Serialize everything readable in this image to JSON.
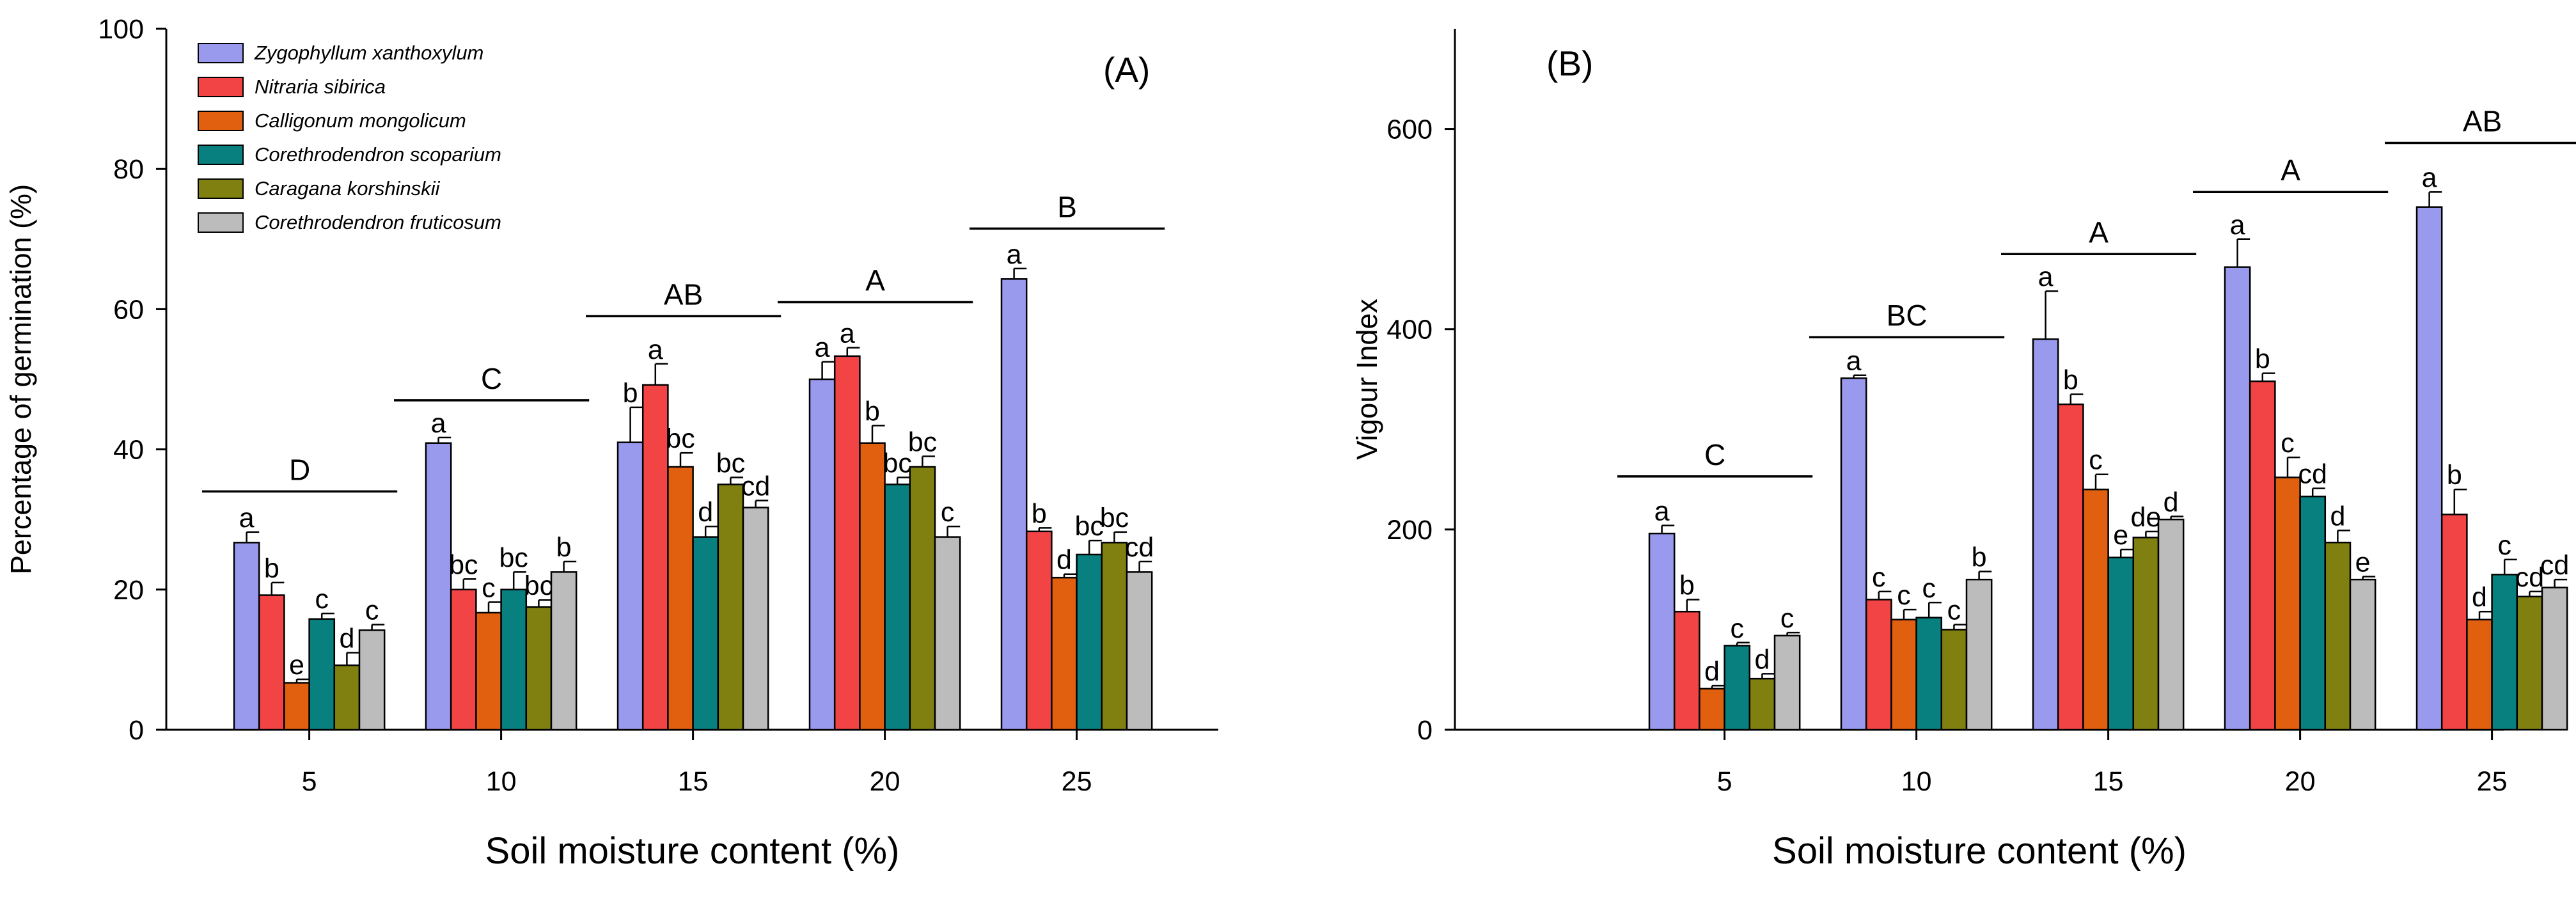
{
  "colors": {
    "Zygophyllum xanthoxylum": "#9999ee",
    "Nitraria sibirica": "#f24444",
    "Calligonum mongolicum": "#e06010",
    "Corethrodendron scoparium": "#088080",
    "Caragana korshinskii": "#808010",
    "Corethrodendron fruticosum": "#bcbcbc"
  },
  "chart_data": [
    {
      "type": "bar",
      "panel_label": "(A)",
      "xlabel": "Soil moisture content  (%)",
      "ylabel": "Percentage of germination (%)",
      "ylim": [
        0,
        100
      ],
      "yticks": [
        0,
        20,
        40,
        60,
        80,
        100
      ],
      "categories": [
        "5",
        "10",
        "15",
        "20",
        "25"
      ],
      "legend": {
        "position": "top-left"
      },
      "series": [
        {
          "name": "Zygophyllum xanthoxylum",
          "italic_legend": true,
          "values": [
            26.7,
            40.9,
            41.0,
            50.0,
            64.3
          ],
          "errors": [
            1.5,
            0.8,
            5.0,
            2.5,
            1.5
          ],
          "letters": [
            "a",
            "a",
            "b",
            "a",
            "a"
          ]
        },
        {
          "name": "Nitraria sibirica",
          "italic_legend": true,
          "values": [
            19.2,
            20.0,
            49.2,
            53.3,
            28.3
          ],
          "errors": [
            1.8,
            1.5,
            3.0,
            1.2,
            0.5
          ],
          "letters": [
            "b",
            "bc",
            "a",
            "a",
            "b"
          ]
        },
        {
          "name": "Calligonum mongolicum",
          "italic_legend": true,
          "values": [
            6.7,
            16.7,
            37.5,
            40.9,
            21.7
          ],
          "errors": [
            0.5,
            1.5,
            2.0,
            2.5,
            0.5
          ],
          "letters": [
            "e",
            "c",
            "bc",
            "b",
            "d"
          ]
        },
        {
          "name": "Corethrodendron scoparium",
          "italic_legend": true,
          "values": [
            15.8,
            20.0,
            27.5,
            35.0,
            25.0
          ],
          "errors": [
            0.8,
            2.5,
            1.5,
            1.0,
            2.0
          ],
          "letters": [
            "c",
            "bc",
            "d",
            "bc",
            "bc"
          ]
        },
        {
          "name": "Caragana korshinskii",
          "italic_legend": true,
          "values": [
            9.2,
            17.5,
            35.0,
            37.5,
            26.7
          ],
          "errors": [
            1.8,
            1.0,
            1.0,
            1.5,
            1.5
          ],
          "letters": [
            "d",
            "bc",
            "bc",
            "bc",
            "bc"
          ]
        },
        {
          "name": "Corethrodendron fruticosum",
          "italic_legend": true,
          "values": [
            14.2,
            22.5,
            31.7,
            27.5,
            22.5
          ],
          "errors": [
            0.8,
            1.5,
            1.0,
            1.5,
            1.5
          ],
          "letters": [
            "c",
            "b",
            "cd",
            "c",
            "cd"
          ]
        }
      ],
      "group_annotations": [
        {
          "category": "5",
          "label": "D",
          "level": 34.0
        },
        {
          "category": "10",
          "label": "C",
          "level": 47.0
        },
        {
          "category": "15",
          "label": "AB",
          "level": 59.0
        },
        {
          "category": "20",
          "label": "A",
          "level": 61.0
        },
        {
          "category": "25",
          "label": "B",
          "level": 71.5
        }
      ]
    },
    {
      "type": "bar",
      "panel_label": "(B)",
      "xlabel": "Soil moisture content  (%)",
      "ylabel": "Vigour Index",
      "ylim": [
        0,
        700
      ],
      "yticks": [
        0,
        200,
        400,
        600
      ],
      "categories": [
        "5",
        "10",
        "15",
        "20",
        "25"
      ],
      "series": [
        {
          "name": "Zygophyllum xanthoxylum",
          "values": [
            196,
            351,
            390,
            462,
            522
          ],
          "errors": [
            8,
            3,
            48,
            28,
            15
          ],
          "letters": [
            "a",
            "a",
            "a",
            "a",
            "a"
          ]
        },
        {
          "name": "Nitraria sibirica",
          "values": [
            118,
            130,
            325,
            348,
            215
          ],
          "errors": [
            12,
            8,
            10,
            8,
            25
          ],
          "letters": [
            "b",
            "c",
            "b",
            "b",
            "b"
          ]
        },
        {
          "name": "Calligonum mongolicum",
          "values": [
            41,
            110,
            240,
            252,
            110
          ],
          "errors": [
            3,
            10,
            15,
            20,
            8
          ],
          "letters": [
            "d",
            "c",
            "c",
            "c",
            "d"
          ]
        },
        {
          "name": "Corethrodendron scoparium",
          "values": [
            84,
            112,
            172,
            233,
            155
          ],
          "errors": [
            3,
            15,
            8,
            8,
            15
          ],
          "letters": [
            "c",
            "c",
            "e",
            "cd",
            "c"
          ]
        },
        {
          "name": "Caragana korshinskii",
          "values": [
            51,
            100,
            192,
            187,
            133
          ],
          "errors": [
            5,
            5,
            6,
            12,
            5
          ],
          "letters": [
            "d",
            "c",
            "de",
            "d",
            "cd"
          ]
        },
        {
          "name": "Corethrodendron fruticosum",
          "values": [
            94,
            150,
            210,
            150,
            142
          ],
          "errors": [
            3,
            8,
            3,
            3,
            8
          ],
          "letters": [
            "c",
            "b",
            "d",
            "e",
            "cd"
          ]
        }
      ],
      "group_annotations": [
        {
          "category": "5",
          "label": "C",
          "level": 253
        },
        {
          "category": "10",
          "label": "BC",
          "level": 392
        },
        {
          "category": "15",
          "label": "A",
          "level": 475
        },
        {
          "category": "20",
          "label": "A",
          "level": 537
        },
        {
          "category": "25",
          "label": "AB",
          "level": 586
        }
      ]
    }
  ]
}
